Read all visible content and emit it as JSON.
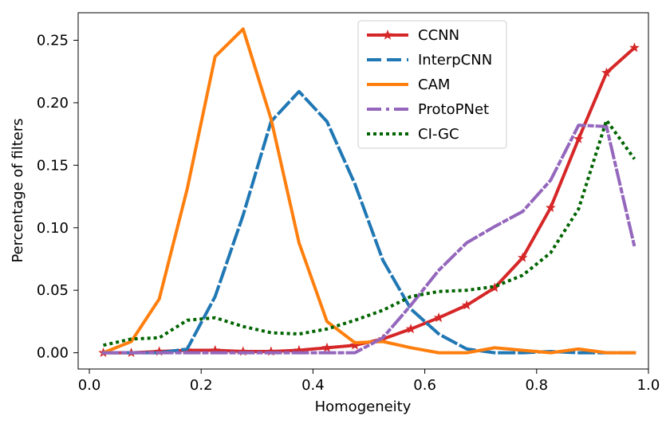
{
  "chart_data": {
    "type": "line",
    "title": "",
    "xlabel": "Homogeneity",
    "ylabel": "Percentage of filters",
    "xlim": [
      -0.02,
      1.0
    ],
    "ylim": [
      -0.013,
      0.272
    ],
    "xticks": [
      0.0,
      0.2,
      0.4,
      0.6,
      0.8,
      1.0
    ],
    "xtick_labels": [
      "0.0",
      "0.2",
      "0.4",
      "0.6",
      "0.8",
      "1.0"
    ],
    "yticks": [
      0.0,
      0.05,
      0.1,
      0.15,
      0.2,
      0.25
    ],
    "ytick_labels": [
      "0.00",
      "0.05",
      "0.10",
      "0.15",
      "0.20",
      "0.25"
    ],
    "legend_position": "top-center",
    "x": [
      0.025,
      0.075,
      0.125,
      0.175,
      0.225,
      0.275,
      0.325,
      0.375,
      0.425,
      0.475,
      0.525,
      0.575,
      0.625,
      0.675,
      0.725,
      0.775,
      0.825,
      0.875,
      0.925,
      0.975
    ],
    "series": [
      {
        "name": "CCNN",
        "color": "#d62728",
        "style": "solid-star",
        "values": [
          0.0,
          0.0,
          0.001,
          0.002,
          0.002,
          0.001,
          0.001,
          0.002,
          0.004,
          0.006,
          0.011,
          0.019,
          0.028,
          0.038,
          0.052,
          0.076,
          0.116,
          0.171,
          0.224,
          0.244
        ]
      },
      {
        "name": "InterpCNN",
        "color": "#1f77b4",
        "style": "dashed",
        "values": [
          0.0,
          0.0,
          0.0,
          0.003,
          0.045,
          0.11,
          0.185,
          0.209,
          0.185,
          0.135,
          0.074,
          0.035,
          0.015,
          0.003,
          0.0,
          0.0,
          0.001,
          0.0,
          0.0,
          0.0
        ]
      },
      {
        "name": "CAM",
        "color": "#ff7f0e",
        "style": "solid",
        "values": [
          0.0,
          0.009,
          0.043,
          0.131,
          0.237,
          0.259,
          0.187,
          0.088,
          0.025,
          0.008,
          0.009,
          0.004,
          0.0,
          0.0,
          0.004,
          0.002,
          0.0,
          0.003,
          0.0,
          0.0
        ]
      },
      {
        "name": "ProtoPNet",
        "color": "#9467bd",
        "style": "dashdot",
        "values": [
          0.0,
          0.0,
          0.0,
          0.0,
          0.0,
          0.0,
          0.0,
          0.0,
          0.0,
          0.0,
          0.012,
          0.038,
          0.066,
          0.088,
          0.101,
          0.113,
          0.138,
          0.182,
          0.181,
          0.085
        ]
      },
      {
        "name": "CI-GC",
        "color": "#006400",
        "style": "dotted",
        "values": [
          0.006,
          0.011,
          0.012,
          0.026,
          0.028,
          0.021,
          0.016,
          0.015,
          0.019,
          0.026,
          0.034,
          0.045,
          0.049,
          0.05,
          0.053,
          0.062,
          0.08,
          0.115,
          0.186,
          0.155
        ]
      }
    ]
  }
}
